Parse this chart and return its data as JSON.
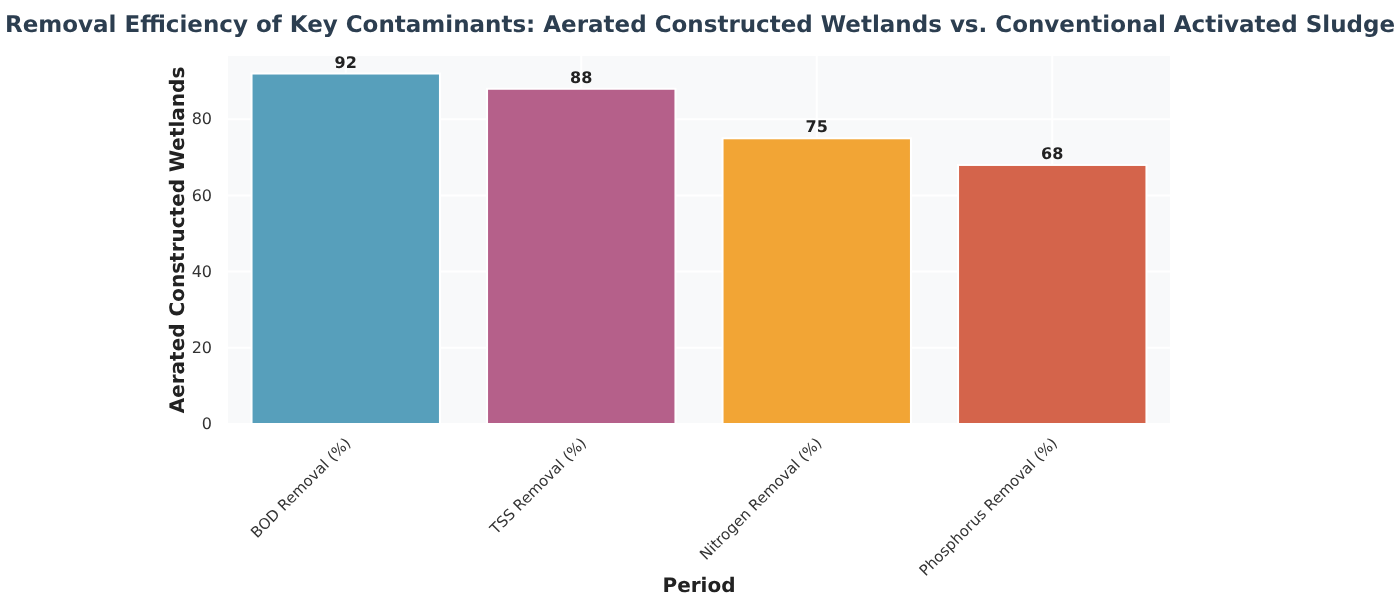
{
  "chart_data": {
    "type": "bar",
    "title": "Removal Efficiency of Key Contaminants: Aerated Constructed Wetlands vs. Conventional Activated Sludge",
    "xlabel": "Period",
    "ylabel": "Aerated Constructed Wetlands",
    "categories": [
      "BOD Removal (%)",
      "TSS Removal (%)",
      "Nitrogen Removal (%)",
      "Phosphorus Removal (%)"
    ],
    "values": [
      92,
      88,
      75,
      68
    ],
    "colors": [
      "#579fbb",
      "#b5608a",
      "#f2a535",
      "#d4644b"
    ],
    "ylim": [
      0,
      96.6
    ],
    "yticks": [
      0,
      20,
      40,
      60,
      80
    ],
    "grid": true,
    "data_labels": true
  }
}
